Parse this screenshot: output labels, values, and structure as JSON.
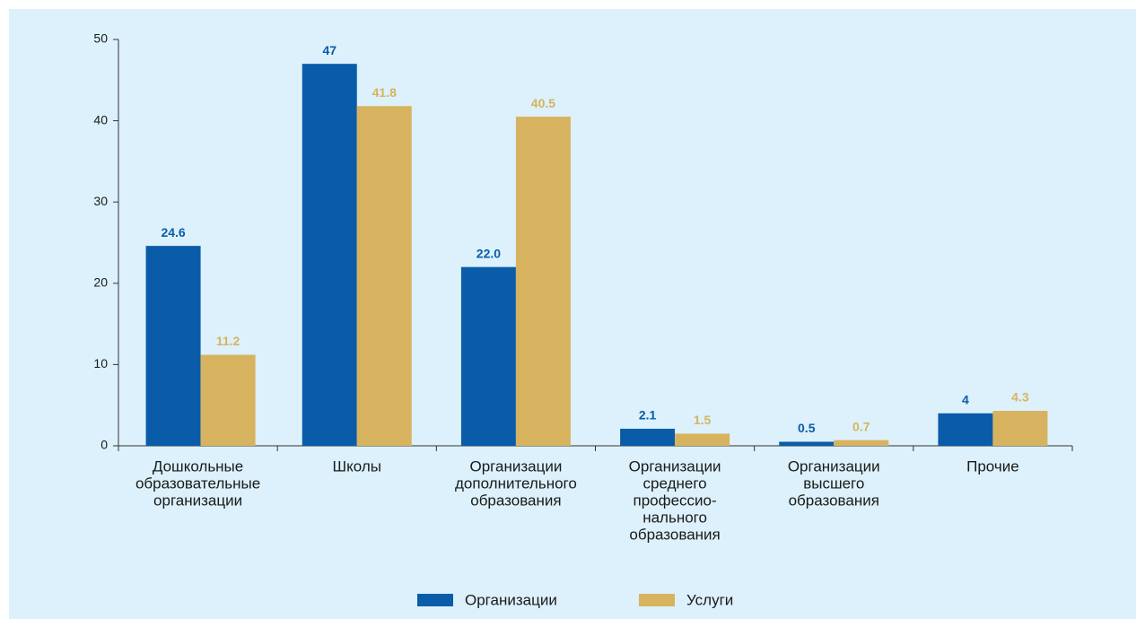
{
  "chart_data": {
    "type": "bar",
    "categories": [
      [
        "Дошкольные",
        "образовательные",
        "организации"
      ],
      [
        "Школы"
      ],
      [
        "Организации",
        "дополнительного",
        "образования"
      ],
      [
        "Организации",
        "среднего",
        "профессио-",
        "нального",
        "образования"
      ],
      [
        "Организации",
        "высшего",
        "образования"
      ],
      [
        "Прочие"
      ]
    ],
    "series": [
      {
        "name": "Организации",
        "color": "#0a5ca8",
        "values": [
          24.6,
          47,
          22.0,
          2.1,
          0.5,
          4
        ],
        "value_labels": [
          "24.6",
          "47",
          "22.0",
          "2.1",
          "0.5",
          "4"
        ]
      },
      {
        "name": "Услуги",
        "color": "#d7b35f",
        "values": [
          11.2,
          41.8,
          40.5,
          1.5,
          0.7,
          4.3
        ],
        "value_labels": [
          "11.2",
          "41.8",
          "40.5",
          "1.5",
          "0.7",
          "4.3"
        ]
      }
    ],
    "ylim": [
      0,
      50
    ],
    "yticks": [
      0,
      10,
      20,
      30,
      40,
      50
    ],
    "grid": false,
    "legend": "bottom"
  }
}
